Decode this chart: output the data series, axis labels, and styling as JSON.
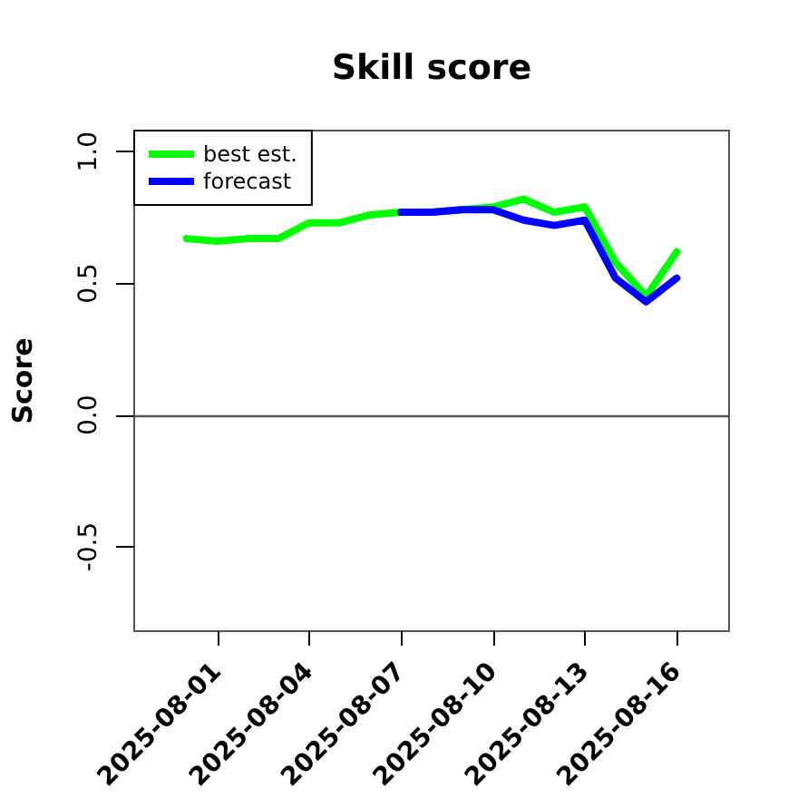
{
  "chart_data": {
    "type": "line",
    "title": "Skill score",
    "ylabel": "Score",
    "x": [
      "2025-07-31",
      "2025-08-01",
      "2025-08-02",
      "2025-08-03",
      "2025-08-04",
      "2025-08-05",
      "2025-08-06",
      "2025-08-07",
      "2025-08-08",
      "2025-08-09",
      "2025-08-10",
      "2025-08-11",
      "2025-08-12",
      "2025-08-13",
      "2025-08-14",
      "2025-08-15",
      "2025-08-16"
    ],
    "series": [
      {
        "name": "best est.",
        "color": "#00ff00",
        "values": [
          0.67,
          0.66,
          0.67,
          0.67,
          0.73,
          0.73,
          0.76,
          0.77,
          0.77,
          0.78,
          0.79,
          0.82,
          0.77,
          0.79,
          0.58,
          0.45,
          0.62
        ]
      },
      {
        "name": "forecast",
        "color": "#0000ff",
        "x": [
          "2025-08-07",
          "2025-08-08",
          "2025-08-09",
          "2025-08-10",
          "2025-08-11",
          "2025-08-12",
          "2025-08-13",
          "2025-08-14",
          "2025-08-15",
          "2025-08-16"
        ],
        "values": [
          0.77,
          0.77,
          0.78,
          0.78,
          0.74,
          0.72,
          0.74,
          0.52,
          0.43,
          0.52
        ]
      }
    ],
    "xlim": [
      "2025-07-29T07:00",
      "2025-08-17T17:00"
    ],
    "xticks": [
      "2025-08-01",
      "2025-08-04",
      "2025-08-07",
      "2025-08-10",
      "2025-08-13",
      "2025-08-16"
    ],
    "ylim": [
      -0.82,
      1.08
    ],
    "yticks": [
      -0.5,
      {
        "value": 0,
        "label": "0.0"
      },
      0.5,
      {
        "value": 1,
        "label": "1.0"
      }
    ],
    "ref_lines": [
      {
        "axis": "y",
        "value": 0,
        "color": "#555555"
      }
    ],
    "legend": "top left"
  }
}
